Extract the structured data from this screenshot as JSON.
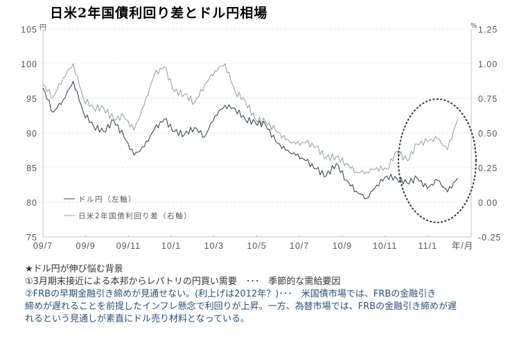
{
  "title": "日米2年国債利回り差とドル円相場",
  "chart_data": {
    "type": "line",
    "title": "日米2年国債利回り差とドル円相場",
    "xlabel": "年/月",
    "ylabel_left": "円",
    "ylabel_right": "%",
    "x_ticks": [
      "09/7",
      "09/9",
      "09/11",
      "10/1",
      "10/3",
      "10/5",
      "10/7",
      "10/9",
      "10/11",
      "11/1"
    ],
    "x": [
      "09/7a",
      "09/7b",
      "09/8a",
      "09/8b",
      "09/9a",
      "09/9b",
      "09/10a",
      "09/10b",
      "09/11a",
      "09/11b",
      "09/12a",
      "09/12b",
      "10/1a",
      "10/1b",
      "10/2a",
      "10/2b",
      "10/3a",
      "10/3b",
      "10/4a",
      "10/4b",
      "10/5a",
      "10/5b",
      "10/6a",
      "10/6b",
      "10/7a",
      "10/7b",
      "10/8a",
      "10/8b",
      "10/9a",
      "10/9b",
      "10/10a",
      "10/10b",
      "10/11a",
      "10/11b",
      "10/12a",
      "10/12b",
      "11/1a",
      "11/1b",
      "11/2a",
      "11/2b",
      "11/3a",
      "11/3b"
    ],
    "ylim_left": [
      75,
      105
    ],
    "ylim_right": [
      -0.25,
      1.25
    ],
    "yticks_left": [
      75,
      80,
      85,
      90,
      95,
      100,
      105
    ],
    "yticks_right": [
      "-0.25",
      "0.00",
      "0.25",
      "0.50",
      "0.75",
      "1.00",
      "1.25"
    ],
    "grid": true,
    "legend_position": "lower-left inside",
    "series": [
      {
        "name": "ドル円（左軸）",
        "axis": "left",
        "color": "#3c4652",
        "values": [
          96.5,
          93.0,
          94.8,
          97.5,
          93.0,
          91.0,
          90.2,
          91.8,
          89.5,
          86.8,
          88.0,
          90.5,
          92.0,
          90.2,
          89.8,
          90.8,
          89.5,
          92.5,
          94.0,
          93.5,
          92.0,
          91.5,
          91.2,
          88.8,
          87.5,
          86.8,
          86.0,
          84.8,
          83.8,
          85.6,
          83.2,
          81.6,
          80.6,
          82.5,
          83.8,
          83.4,
          82.8,
          83.5,
          82.0,
          83.2,
          81.5,
          83.5
        ]
      },
      {
        "name": "日米2年国債利回り差（右軸）",
        "axis": "right",
        "color": "#9aa2aa",
        "values": [
          0.85,
          0.76,
          0.9,
          1.0,
          0.75,
          0.68,
          0.68,
          0.6,
          0.62,
          0.52,
          0.7,
          0.92,
          0.98,
          0.8,
          0.78,
          0.72,
          0.85,
          0.95,
          1.0,
          0.8,
          0.73,
          0.6,
          0.58,
          0.52,
          0.45,
          0.42,
          0.43,
          0.4,
          0.32,
          0.33,
          0.28,
          0.22,
          0.22,
          0.25,
          0.24,
          0.37,
          0.3,
          0.42,
          0.44,
          0.46,
          0.38,
          0.6
        ]
      }
    ],
    "annotations": [
      "dotted ellipse highlighting 10/12 – 11/3"
    ]
  },
  "axes": {
    "left_unit": "円",
    "right_unit": "%",
    "left_ticks": [
      "105",
      "100",
      "95",
      "90",
      "85",
      "80",
      "75"
    ],
    "right_ticks": [
      "1.25",
      "1.00",
      "0.75",
      "0.50",
      "0.25",
      "0.00",
      "-0.25"
    ],
    "x_ticks": [
      "09/7",
      "09/9",
      "09/11",
      "10/1",
      "10/3",
      "10/5",
      "10/7",
      "10/9",
      "10/11",
      "11/1"
    ],
    "x_unit": "年/月"
  },
  "legend": {
    "items": [
      {
        "label": "ドル円（左軸）",
        "color": "#3c4652"
      },
      {
        "label": "日米2年国債利回り差（右軸）",
        "color": "#9aa2aa"
      }
    ]
  },
  "notes": {
    "heading": "★ドル円が伸び悩む背景",
    "item1": "①3月期末接近による本邦からレパトリの円買い需要　･･･　季節的な需給要因",
    "item2_line1": "②FRBの早期金融引き締めが見通せない。(利上げは2012年？)･･･　米国債市場では、FRBの金融引き",
    "item2_line2": "締めが遅れることを前提したインフレ懸念で利回りが上昇。一方、為替市場では、FRBの金融引き締めが遅",
    "item2_line3": "れるという見通しが素直にドル売り材料となっている。"
  }
}
